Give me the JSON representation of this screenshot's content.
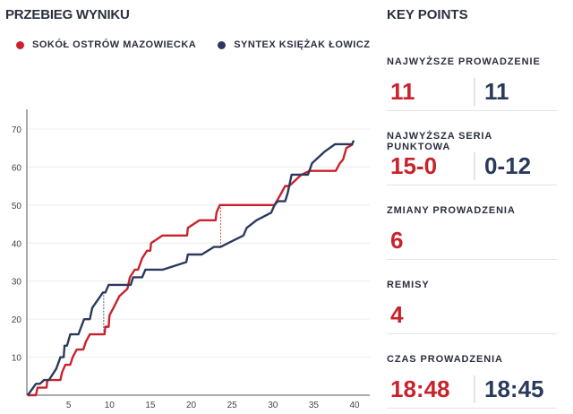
{
  "title": "PRZEBIEG WYNIKU",
  "colors": {
    "home": "#c8232c",
    "away": "#2b3a5c"
  },
  "chart_data": {
    "type": "line",
    "xlim": [
      0,
      40
    ],
    "ylim": [
      0,
      72
    ],
    "xticks": [
      5,
      10,
      15,
      20,
      25,
      30,
      35,
      40
    ],
    "yticks": [
      10,
      20,
      30,
      40,
      50,
      60,
      70
    ],
    "grid": true,
    "legend": "top-left",
    "series": [
      {
        "name": "SOKÓŁ OSTRÓW MAZOWIECKA",
        "color": "#c8232c",
        "points": [
          [
            0,
            0
          ],
          [
            1,
            0
          ],
          [
            1.2,
            2
          ],
          [
            2.3,
            2
          ],
          [
            2.4,
            4
          ],
          [
            4,
            4
          ],
          [
            4.2,
            6
          ],
          [
            4.6,
            8
          ],
          [
            5.2,
            8
          ],
          [
            5.5,
            10
          ],
          [
            6,
            12
          ],
          [
            6.8,
            12
          ],
          [
            7.1,
            14
          ],
          [
            7.6,
            16
          ],
          [
            9.4,
            16
          ],
          [
            9.5,
            18
          ],
          [
            9.9,
            18
          ],
          [
            10,
            21
          ],
          [
            10.5,
            23
          ],
          [
            11.2,
            26
          ],
          [
            12.2,
            28
          ],
          [
            12.5,
            31
          ],
          [
            13.1,
            33
          ],
          [
            13.5,
            33
          ],
          [
            14,
            36
          ],
          [
            14.6,
            38
          ],
          [
            15,
            38
          ],
          [
            15.1,
            40
          ],
          [
            16.5,
            42
          ],
          [
            19.5,
            42
          ],
          [
            19.6,
            44
          ],
          [
            21,
            46
          ],
          [
            23,
            46
          ],
          [
            23.1,
            48
          ],
          [
            23.5,
            50
          ],
          [
            30.2,
            50
          ],
          [
            31,
            53
          ],
          [
            31.5,
            55
          ],
          [
            32,
            55
          ],
          [
            33.5,
            58
          ],
          [
            34.5,
            59
          ],
          [
            37.7,
            59
          ],
          [
            38.2,
            61
          ],
          [
            38.6,
            62
          ],
          [
            39,
            65
          ],
          [
            39.8,
            66
          ]
        ]
      },
      {
        "name": "SYNTEX KSIĘŻAK ŁOWICZ",
        "color": "#2b3a5c",
        "points": [
          [
            0,
            0
          ],
          [
            1,
            3
          ],
          [
            1.5,
            3
          ],
          [
            2,
            4
          ],
          [
            2.6,
            4
          ],
          [
            3.5,
            7
          ],
          [
            4,
            10
          ],
          [
            4.4,
            10
          ],
          [
            4.5,
            13
          ],
          [
            4.8,
            13
          ],
          [
            5.2,
            16
          ],
          [
            6.2,
            16
          ],
          [
            6.9,
            20
          ],
          [
            7.6,
            20
          ],
          [
            7.9,
            23
          ],
          [
            9.2,
            27
          ],
          [
            9.5,
            27
          ],
          [
            9.9,
            29
          ],
          [
            12.6,
            29
          ],
          [
            12.9,
            31
          ],
          [
            14,
            31
          ],
          [
            14.4,
            33
          ],
          [
            16.5,
            33
          ],
          [
            19.4,
            35
          ],
          [
            19.6,
            37
          ],
          [
            21.3,
            37
          ],
          [
            22.8,
            39
          ],
          [
            23.6,
            39
          ],
          [
            26.4,
            42
          ],
          [
            26.8,
            44
          ],
          [
            28,
            46
          ],
          [
            29.8,
            48
          ],
          [
            30.2,
            50
          ],
          [
            30.6,
            51
          ],
          [
            31.5,
            51
          ],
          [
            31.8,
            53
          ],
          [
            32.3,
            58
          ],
          [
            34.3,
            58
          ],
          [
            34.8,
            61
          ],
          [
            36.3,
            64
          ],
          [
            37.6,
            66
          ],
          [
            39.7,
            66
          ],
          [
            39.9,
            67
          ]
        ]
      }
    ],
    "lead_markers": [
      {
        "x": 9.3,
        "from": 16,
        "to": 27,
        "color": "#2b3a5c"
      },
      {
        "x": 23.6,
        "from": 39,
        "to": 50,
        "color": "#c8232c"
      }
    ]
  },
  "key_points": {
    "title": "KEY POINTS",
    "sections": [
      {
        "label": "NAJWYŻSZE PROWADZENIE",
        "home": "11",
        "away": "11"
      },
      {
        "label": "NAJWYŻSZA SERIA PUNKTOWA",
        "home": "15-0",
        "away": "0-12"
      },
      {
        "label": "ZMIANY PROWADZENIA",
        "home": "6"
      },
      {
        "label": "REMISY",
        "home": "4"
      },
      {
        "label": "CZAS PROWADZENIA",
        "home": "18:48",
        "away": "18:45"
      }
    ]
  }
}
